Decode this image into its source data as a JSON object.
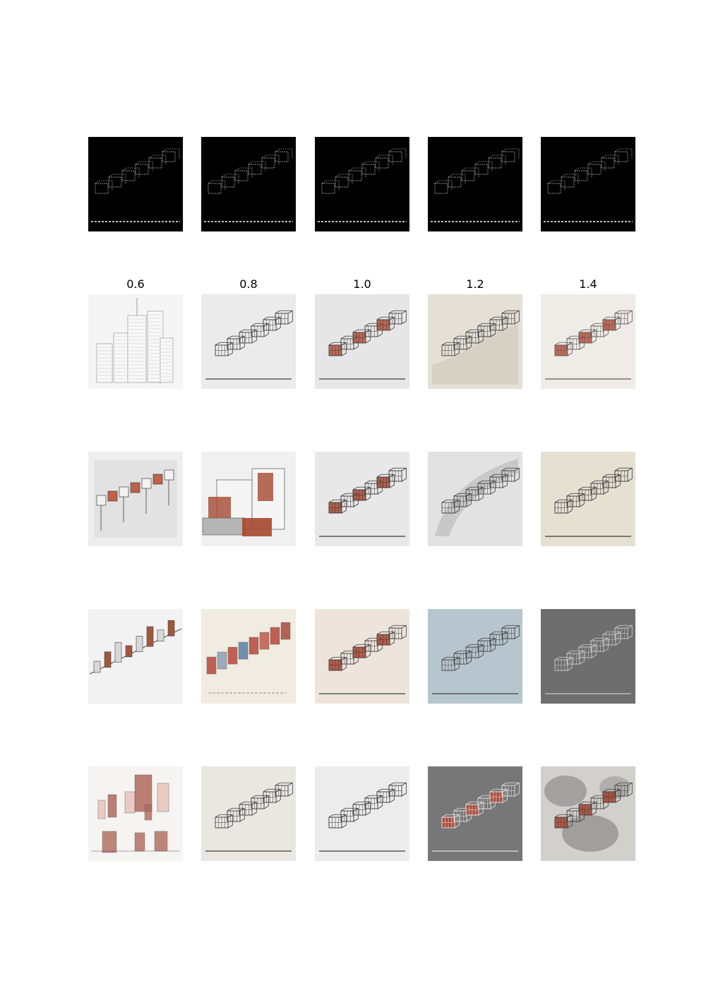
{
  "figure": {
    "column_labels": [
      "0.6",
      "0.8",
      "1.0",
      "1.2",
      "1.4"
    ],
    "rows": [
      {
        "tiles": [
          {
            "kind": "edge-map",
            "bg": "#000000",
            "ink": "#bdbdbd",
            "accent": "",
            "style": "edge"
          },
          {
            "kind": "edge-map",
            "bg": "#000000",
            "ink": "#bdbdbd",
            "accent": "",
            "style": "edge"
          },
          {
            "kind": "edge-map",
            "bg": "#000000",
            "ink": "#bdbdbd",
            "accent": "",
            "style": "edge"
          },
          {
            "kind": "edge-map",
            "bg": "#000000",
            "ink": "#bdbdbd",
            "accent": "",
            "style": "edge"
          },
          {
            "kind": "edge-map",
            "bg": "#000000",
            "ink": "#bdbdbd",
            "accent": "",
            "style": "edge"
          }
        ]
      },
      {
        "tiles": [
          {
            "kind": "pencil-skyscrapers",
            "bg": "#f5f5f5",
            "ink": "#9a9a9a",
            "accent": "",
            "style": "towers"
          },
          {
            "kind": "sketch-steps",
            "bg": "#ebebeb",
            "ink": "#3a3a3a",
            "accent": "",
            "style": "steps"
          },
          {
            "kind": "sketch-steps",
            "bg": "#e6e6e6",
            "ink": "#3c3c3c",
            "accent": "#b4513c",
            "style": "steps"
          },
          {
            "kind": "sketch-steps",
            "bg": "#e4e0d6",
            "ink": "#3a3a3a",
            "accent": "",
            "style": "steps-wall"
          },
          {
            "kind": "sketch-steps",
            "bg": "#efebe6",
            "ink": "#555555",
            "accent": "#b9533d",
            "style": "steps"
          }
        ]
      },
      {
        "tiles": [
          {
            "kind": "sketch-hillside",
            "bg": "#eeeeee",
            "ink": "#444444",
            "accent": "#c0614b",
            "style": "stilts"
          },
          {
            "kind": "sketch-blocks",
            "bg": "#f0f0f0",
            "ink": "#555555",
            "accent": "#a5482f",
            "style": "blocks"
          },
          {
            "kind": "sketch-steps",
            "bg": "#e8e8e8",
            "ink": "#333333",
            "accent": "#a84830",
            "style": "steps"
          },
          {
            "kind": "sketch-steps",
            "bg": "#e2e2e2",
            "ink": "#3d3d3d",
            "accent": "",
            "style": "steps-wash"
          },
          {
            "kind": "sketch-steps",
            "bg": "#e6e0d3",
            "ink": "#333333",
            "accent": "",
            "style": "steps"
          }
        ]
      },
      {
        "tiles": [
          {
            "kind": "sketch-slope",
            "bg": "#f2f2f2",
            "ink": "#444444",
            "accent": "#a0583c",
            "style": "slope"
          },
          {
            "kind": "sketch-slope-color",
            "bg": "#f1ece1",
            "ink": "#555555",
            "accent": "#b8473a",
            "style": "slope-color"
          },
          {
            "kind": "sketch-steps",
            "bg": "#ede5dc",
            "ink": "#3a3a3a",
            "accent": "#a9452f",
            "style": "steps"
          },
          {
            "kind": "sketch-steps",
            "bg": "#b7c6ce",
            "ink": "#3d3d3d",
            "accent": "",
            "style": "steps"
          },
          {
            "kind": "sketch-steps",
            "bg": "#6e6e6e",
            "ink": "#cfcfcf",
            "accent": "",
            "style": "steps-dark"
          }
        ]
      },
      {
        "tiles": [
          {
            "kind": "sketch-facades",
            "bg": "#f6f4f2",
            "ink": "#555555",
            "accent": "#b06a5d",
            "style": "facades"
          },
          {
            "kind": "sketch-steps",
            "bg": "#eae7e3",
            "ink": "#3a3a3a",
            "accent": "",
            "style": "steps"
          },
          {
            "kind": "sketch-steps",
            "bg": "#ececec",
            "ink": "#333333",
            "accent": "",
            "style": "steps"
          },
          {
            "kind": "sketch-steps",
            "bg": "#777777",
            "ink": "#e8e8e8",
            "accent": "#b24a38",
            "style": "steps-dark"
          },
          {
            "kind": "sketch-steps",
            "bg": "#d2d0cc",
            "ink": "#3c3c3c",
            "accent": "#a8442f",
            "style": "steps-clouds"
          }
        ]
      }
    ]
  }
}
